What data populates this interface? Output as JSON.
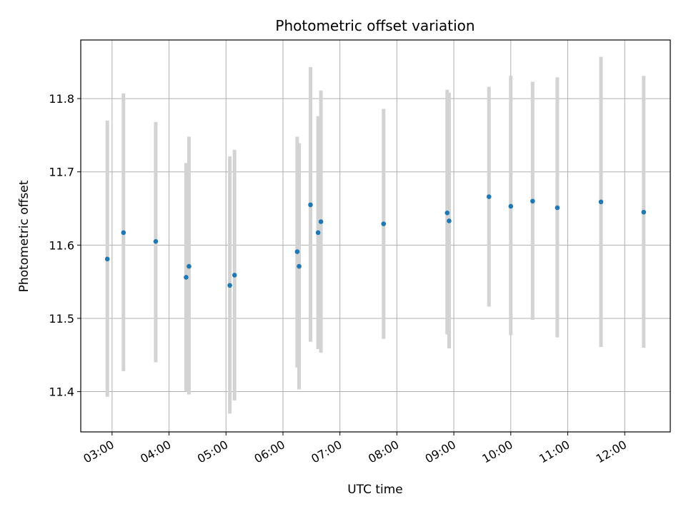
{
  "chart_data": {
    "type": "scatter",
    "title": "Photometric offset variation",
    "xlabel": "UTC time",
    "ylabel": "Photometric offset",
    "x_ticks": [
      "03:00",
      "04:00",
      "05:00",
      "06:00",
      "07:00",
      "08:00",
      "09:00",
      "10:00",
      "11:00",
      "12:00"
    ],
    "x_tick_values": [
      "03:00",
      "04:00",
      "05:00",
      "06:00",
      "07:00",
      "08:00",
      "09:00",
      "10:00",
      "11:00",
      "12:00"
    ],
    "xlim": [
      "02:27",
      "12:48"
    ],
    "y_ticks": [
      "11.4",
      "11.5",
      "11.6",
      "11.7",
      "11.8"
    ],
    "y_tick_values": [
      11.4,
      11.5,
      11.6,
      11.7,
      11.8
    ],
    "ylim": [
      11.345,
      11.88
    ],
    "grid": true,
    "marker_color": "#1f77b4",
    "errorbar_color": "#d3d3d3",
    "points": [
      {
        "x": "02:55",
        "y": 11.581,
        "ylo": 11.393,
        "yhi": 11.77
      },
      {
        "x": "03:12",
        "y": 11.617,
        "ylo": 11.428,
        "yhi": 11.807
      },
      {
        "x": "03:46",
        "y": 11.605,
        "ylo": 11.44,
        "yhi": 11.768
      },
      {
        "x": "04:18",
        "y": 11.556,
        "ylo": 11.4,
        "yhi": 11.712
      },
      {
        "x": "04:21",
        "y": 11.571,
        "ylo": 11.396,
        "yhi": 11.748
      },
      {
        "x": "05:04",
        "y": 11.545,
        "ylo": 11.37,
        "yhi": 11.721
      },
      {
        "x": "05:09",
        "y": 11.559,
        "ylo": 11.388,
        "yhi": 11.73
      },
      {
        "x": "06:15",
        "y": 11.591,
        "ylo": 11.433,
        "yhi": 11.748
      },
      {
        "x": "06:17",
        "y": 11.571,
        "ylo": 11.403,
        "yhi": 11.739
      },
      {
        "x": "06:29",
        "y": 11.655,
        "ylo": 11.468,
        "yhi": 11.843
      },
      {
        "x": "06:37",
        "y": 11.617,
        "ylo": 11.458,
        "yhi": 11.776
      },
      {
        "x": "06:40",
        "y": 11.632,
        "ylo": 11.453,
        "yhi": 11.811
      },
      {
        "x": "07:46",
        "y": 11.629,
        "ylo": 11.472,
        "yhi": 11.786
      },
      {
        "x": "08:53",
        "y": 11.644,
        "ylo": 11.478,
        "yhi": 11.812
      },
      {
        "x": "08:55",
        "y": 11.633,
        "ylo": 11.459,
        "yhi": 11.808
      },
      {
        "x": "09:37",
        "y": 11.666,
        "ylo": 11.516,
        "yhi": 11.816
      },
      {
        "x": "10:00",
        "y": 11.653,
        "ylo": 11.477,
        "yhi": 11.831
      },
      {
        "x": "10:23",
        "y": 11.66,
        "ylo": 11.498,
        "yhi": 11.823
      },
      {
        "x": "10:49",
        "y": 11.651,
        "ylo": 11.474,
        "yhi": 11.829
      },
      {
        "x": "11:35",
        "y": 11.659,
        "ylo": 11.461,
        "yhi": 11.857
      },
      {
        "x": "12:20",
        "y": 11.645,
        "ylo": 11.46,
        "yhi": 11.831
      }
    ]
  }
}
